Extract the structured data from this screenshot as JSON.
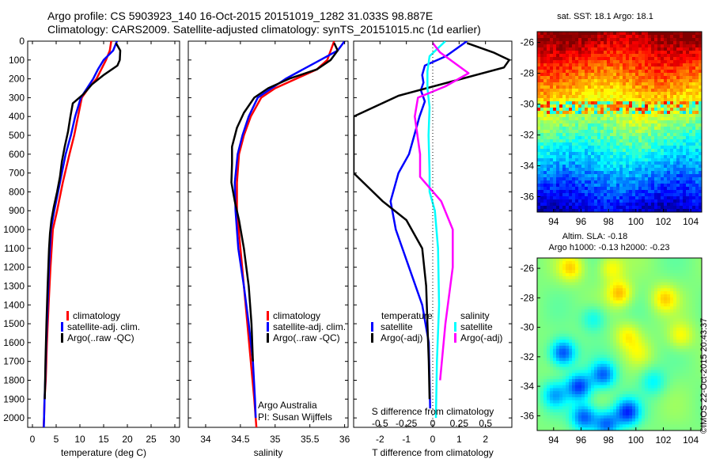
{
  "header": {
    "line1": "Argo profile: CS 5903923_140 16-Oct-2015 20151019_1282 31.033S 98.887E",
    "line2": "Climatology: CARS2009. Satellite-adjusted climatology: synTS_20151015.nc (1d earlier)"
  },
  "colors": {
    "climatology": "#ff0000",
    "satellite": "#0000ff",
    "argo": "#000000",
    "salinity_satellite": "#00ffff",
    "salinity_argo": "#ff00ff"
  },
  "chart_data": [
    {
      "type": "line",
      "id": "temperature",
      "xlabel": "temperature (deg C)",
      "ylabel": "",
      "xlim": [
        -1,
        31
      ],
      "ylim": [
        2050,
        0
      ],
      "xticks": [
        "0",
        "5",
        "10",
        "15",
        "20",
        "25",
        "30"
      ],
      "yticks": [
        "0",
        "100",
        "200",
        "300",
        "400",
        "500",
        "600",
        "700",
        "800",
        "900",
        "1000",
        "1100",
        "1200",
        "1300",
        "1400",
        "1500",
        "1600",
        "1700",
        "1800",
        "1900",
        "2000"
      ],
      "legend": [
        "climatology",
        "satellite-adj. clim.",
        "Argo(..raw -QC)"
      ],
      "series": [
        {
          "name": "climatology",
          "x": [
            16.6,
            16.3,
            15.5,
            14.5,
            13.5,
            11.8,
            10.4,
            9.6,
            8.8,
            7.8,
            6.4,
            5.2,
            4.3,
            3.8,
            3.4,
            3.05,
            2.8,
            2.55,
            2.45,
            2.35
          ],
          "y": [
            0,
            50,
            100,
            150,
            200,
            250,
            300,
            400,
            500,
            600,
            750,
            900,
            1000,
            1200,
            1400,
            1600,
            1800,
            1900,
            2000,
            2050
          ]
        },
        {
          "name": "satellite-adj. clim.",
          "x": [
            17.8,
            17.0,
            15.0,
            13.8,
            12.8,
            11.5,
            10.2,
            9.0,
            8.1,
            7.0,
            5.8,
            4.6,
            3.9,
            3.5,
            3.2,
            2.9,
            2.7,
            2.55,
            2.45,
            2.4
          ],
          "y": [
            0,
            50,
            100,
            150,
            200,
            250,
            300,
            400,
            500,
            600,
            750,
            900,
            1000,
            1200,
            1400,
            1600,
            1800,
            1900,
            2000,
            2050
          ]
        },
        {
          "name": "Argo(..raw -QC)",
          "x": [
            17.6,
            18.5,
            18.4,
            17.9,
            15.0,
            12.5,
            10.8,
            8.5,
            8.0,
            7.5,
            6.8,
            6.2,
            5.8,
            5.2,
            4.5,
            4.0,
            3.7,
            3.5,
            3.2,
            2.95,
            2.75,
            2.6
          ],
          "y": [
            10,
            50,
            100,
            130,
            180,
            230,
            280,
            330,
            400,
            480,
            560,
            640,
            720,
            800,
            880,
            950,
            1020,
            1100,
            1300,
            1500,
            1700,
            1900
          ]
        }
      ]
    },
    {
      "type": "line",
      "id": "salinity",
      "xlabel": "salinity",
      "ylabel": "",
      "xlim": [
        33.75,
        36.05
      ],
      "ylim": [
        2050,
        0
      ],
      "xticks": [
        "34",
        "34.5",
        "35",
        "35.5",
        "36"
      ],
      "legend": [
        "climatology",
        "satellite-adj. clim.",
        "Argo(..raw -QC)"
      ],
      "annotation": [
        "Argo Australia",
        "PI: Susan Wijffels"
      ],
      "series": [
        {
          "name": "climatology",
          "x": [
            35.85,
            35.8,
            35.75,
            35.6,
            35.3,
            35.0,
            34.8,
            34.65,
            34.55,
            34.48,
            34.45,
            34.45,
            34.5,
            34.55,
            34.6,
            34.65,
            34.7,
            34.72,
            34.73
          ],
          "y": [
            0,
            50,
            100,
            150,
            200,
            250,
            300,
            400,
            500,
            600,
            750,
            900,
            1100,
            1300,
            1500,
            1700,
            1900,
            2000,
            2050
          ]
        },
        {
          "name": "satellite-adj. clim.",
          "x": [
            36.0,
            35.9,
            35.65,
            35.4,
            35.15,
            34.95,
            34.75,
            34.62,
            34.53,
            34.46,
            34.42,
            34.43,
            34.47,
            34.55,
            34.62,
            34.68,
            34.71,
            34.72
          ],
          "y": [
            0,
            50,
            100,
            150,
            200,
            250,
            300,
            400,
            500,
            600,
            750,
            900,
            1100,
            1300,
            1500,
            1700,
            1900,
            2000
          ]
        },
        {
          "name": "Argo(..raw -QC)",
          "x": [
            35.85,
            35.9,
            35.8,
            35.6,
            35.2,
            34.9,
            34.7,
            34.55,
            34.45,
            34.38,
            34.38,
            34.37,
            34.42,
            34.48,
            34.55,
            34.62,
            34.66,
            34.68
          ],
          "y": [
            10,
            50,
            100,
            150,
            200,
            250,
            300,
            380,
            460,
            560,
            650,
            750,
            850,
            950,
            1100,
            1300,
            1500,
            1700
          ]
        }
      ]
    },
    {
      "type": "line",
      "id": "difference",
      "xlabel": "T difference from climatology",
      "xlabel2": "S difference from climatology",
      "xlim": [
        -3.0,
        3.0
      ],
      "ylim": [
        2050,
        0
      ],
      "xticks": [
        "-2",
        "-1",
        "0",
        "1",
        "2"
      ],
      "xticks_top": [
        "-0.5",
        "-0.25",
        "0",
        "0.25",
        "0.5"
      ],
      "legend_groups": [
        "temperature",
        "salinity"
      ],
      "legend": [
        "satellite",
        "Argo(-adj)",
        "satellite",
        "Argo(-adj)"
      ],
      "series": [
        {
          "name": "temperature satellite",
          "x": [
            1.3,
            0.5,
            -0.3,
            -0.4,
            -0.35,
            -0.45,
            -0.3,
            -0.5,
            -0.7,
            -0.9,
            -1.3,
            -1.6,
            -1.4,
            -0.9,
            -0.4,
            -0.15,
            -0.12,
            -0.1
          ],
          "y": [
            0,
            80,
            130,
            180,
            220,
            260,
            320,
            400,
            500,
            600,
            700,
            850,
            1000,
            1200,
            1400,
            1600,
            1800,
            1950
          ]
        },
        {
          "name": "temperature Argo(-adj)",
          "x": [
            1.3,
            2.3,
            2.9,
            2.7,
            -1.3,
            -3.0,
            -3.0,
            -1.9,
            -1.0,
            -0.4,
            -0.25,
            -0.2,
            -0.15,
            -0.12
          ],
          "y": [
            10,
            60,
            100,
            140,
            290,
            400,
            700,
            850,
            950,
            1100,
            1300,
            1500,
            1700,
            1900
          ]
        },
        {
          "name": "salinity satellite",
          "x": [
            0.12,
            -0.03,
            -0.05,
            -0.05,
            -0.03,
            -0.04,
            -0.03,
            -0.03,
            0.02,
            0.05,
            0.06,
            0.04,
            0.03
          ],
          "y": [
            0,
            80,
            160,
            250,
            350,
            500,
            700,
            800,
            900,
            1100,
            1400,
            1700,
            2000
          ]
        },
        {
          "name": "salinity Argo(-adj)",
          "x": [
            0.0,
            0.07,
            0.34,
            0.12,
            -0.14,
            -0.17,
            -0.12,
            -0.12,
            0.08,
            0.19,
            0.19,
            0.12,
            0.07
          ],
          "y": [
            10,
            60,
            170,
            240,
            300,
            400,
            600,
            720,
            850,
            1000,
            1200,
            1500,
            1800
          ]
        }
      ]
    },
    {
      "type": "heatmap",
      "id": "sst_map",
      "title": "sat. SST: 18.1  Argo: 18.1",
      "xlim": [
        92.8,
        104.8
      ],
      "ylim": [
        -37,
        -25.3
      ],
      "xticks": [
        "94",
        "96",
        "98",
        "100",
        "102",
        "104"
      ],
      "yticks": [
        "-26",
        "-28",
        "-30",
        "-32",
        "-34",
        "-36"
      ]
    },
    {
      "type": "heatmap",
      "id": "sla_map",
      "title": "Altim. SLA: -0.18",
      "subtitle": "Argo h1000: -0.13 h2000: -0.23",
      "xlim": [
        92.8,
        104.8
      ],
      "ylim": [
        -37,
        -25.3
      ],
      "xticks": [
        "94",
        "96",
        "98",
        "100",
        "102",
        "104"
      ],
      "yticks": [
        "-26",
        "-28",
        "-30",
        "-32",
        "-34",
        "-36"
      ],
      "credit": "©IMOS 22-Oct-2015 20:43:37"
    }
  ]
}
